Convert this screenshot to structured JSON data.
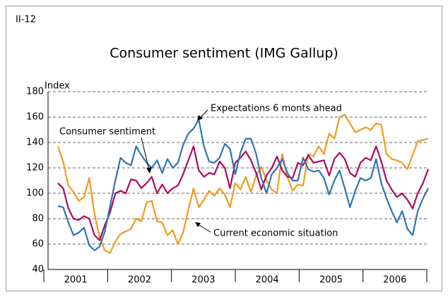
{
  "chart_data": {
    "type": "line",
    "figure_label": "II-12",
    "title": "Consumer sentiment (IMG Gallup)",
    "y_label": "Index",
    "categories": [
      null,
      null,
      null,
      null,
      null,
      "2001",
      null,
      null,
      null,
      null,
      null,
      null,
      null,
      null,
      null,
      null,
      null,
      "2002",
      null,
      null,
      null,
      null,
      null,
      null,
      null,
      null,
      null,
      null,
      null,
      "2003",
      null,
      null,
      null,
      null,
      null,
      null,
      null,
      null,
      null,
      null,
      null,
      "2004",
      null,
      null,
      null,
      null,
      null,
      null,
      null,
      null,
      null,
      null,
      null,
      "2005",
      null,
      null,
      null,
      null,
      null,
      null,
      null,
      null,
      null,
      null,
      null,
      "2006",
      null,
      null,
      null,
      null,
      null,
      null
    ],
    "ylim": [
      40,
      180
    ],
    "yticks": [
      40,
      60,
      80,
      100,
      120,
      140,
      160,
      180
    ],
    "grid": true,
    "series": [
      {
        "name": "Expectations 6 monts ahead",
        "color": "#2f74b5",
        "values": [
          90,
          89,
          77,
          67,
          69,
          73,
          59,
          55,
          58,
          70,
          90,
          110,
          128,
          124,
          122,
          137,
          130,
          124,
          120,
          126,
          116,
          127,
          120,
          124,
          138,
          147,
          151,
          158,
          137,
          125,
          124,
          128,
          139,
          135,
          115,
          132,
          143,
          143,
          131,
          112,
          100,
          115,
          120,
          127,
          116,
          110,
          110,
          128,
          119,
          117,
          118,
          112,
          99,
          110,
          118,
          104,
          89,
          102,
          112,
          110,
          112,
          127,
          108,
          96,
          86,
          77,
          86,
          72,
          67,
          86,
          96,
          104
        ]
      },
      {
        "name": "Consumer sentiment",
        "color": "#ad0b5e",
        "values": [
          108,
          104,
          88,
          80,
          79,
          82,
          80,
          67,
          63,
          75,
          85,
          100,
          102,
          100,
          111,
          110,
          104,
          108,
          113,
          100,
          107,
          100,
          104,
          106,
          115,
          126,
          137,
          118,
          113,
          116,
          115,
          125,
          120,
          104,
          124,
          128,
          133,
          126,
          116,
          103,
          114,
          120,
          129,
          118,
          113,
          112,
          124,
          122,
          130,
          124,
          125,
          126,
          114,
          127,
          132,
          127,
          116,
          113,
          124,
          128,
          126,
          137,
          125,
          110,
          103,
          97,
          100,
          95,
          88,
          100,
          108,
          119
        ]
      },
      {
        "name": "Current economic situation",
        "color": "#f39a1e",
        "values": [
          137,
          125,
          106,
          101,
          94,
          97,
          112,
          84,
          65,
          55,
          53,
          62,
          68,
          70,
          72,
          80,
          78,
          93,
          94,
          78,
          77,
          67,
          71,
          60,
          69,
          87,
          104,
          89,
          95,
          102,
          98,
          104,
          99,
          89,
          108,
          103,
          113,
          101,
          114,
          121,
          110,
          103,
          100,
          131,
          113,
          102,
          107,
          106,
          131,
          129,
          137,
          131,
          147,
          143,
          160,
          162,
          155,
          148,
          150,
          152,
          150,
          155,
          154,
          131,
          127,
          126,
          124,
          119,
          130,
          141,
          142,
          143
        ]
      }
    ]
  }
}
